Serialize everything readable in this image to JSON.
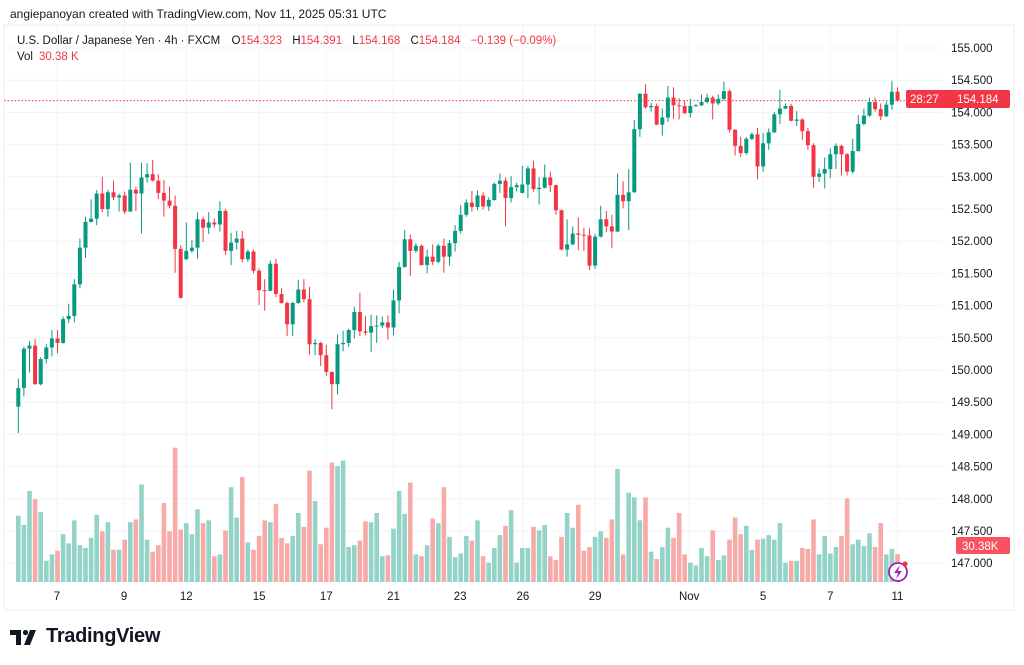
{
  "credit": "angiepanoyan created with TradingView.com, Nov 11, 2025 05:31 UTC",
  "legend": {
    "symbol": "U.S. Dollar / Japanese Yen · 4h · FXCM",
    "o_label": "O",
    "o": "154.323",
    "h_label": "H",
    "h": "154.391",
    "l_label": "L",
    "l": "154.168",
    "c_label": "C",
    "c": "154.184",
    "change": "−0.139 (−0.09%)",
    "vol_label": "Vol",
    "vol": "30.38 K"
  },
  "price_label": {
    "price": "154.184",
    "countdown": "28:27"
  },
  "volume_label": "30.38K",
  "logo_text": "TradingView",
  "colors": {
    "up": "#089981",
    "down": "#f23645",
    "vol_up": "#93d3c8",
    "vol_down": "#f7aaa8",
    "grid": "#f2f3f6"
  },
  "icons": [
    "lightning-icon",
    "tradingview-logo-icon"
  ],
  "chart_data": {
    "type": "candlestick",
    "title": "U.S. Dollar / Japanese Yen · 4h · FXCM",
    "ylim": [
      147.0,
      155.0
    ],
    "y_ticks": [
      "155.000",
      "154.500",
      "154.000",
      "153.500",
      "153.000",
      "152.500",
      "152.000",
      "151.500",
      "151.000",
      "150.500",
      "150.000",
      "149.500",
      "149.000",
      "148.500",
      "148.000",
      "147.500",
      "147.000"
    ],
    "x_ticks": [
      {
        "label": "7",
        "index": 6.9
      },
      {
        "label": "9",
        "index": 18.9
      },
      {
        "label": "12",
        "index": 30
      },
      {
        "label": "15",
        "index": 43
      },
      {
        "label": "17",
        "index": 55
      },
      {
        "label": "21",
        "index": 67
      },
      {
        "label": "23",
        "index": 78.9
      },
      {
        "label": "26",
        "index": 90.1
      },
      {
        "label": "29",
        "index": 103
      },
      {
        "label": "Nov",
        "index": 119.8
      },
      {
        "label": "5",
        "index": 133
      },
      {
        "label": "7",
        "index": 145
      },
      {
        "label": "11",
        "index": 157
      }
    ],
    "last_price": 154.184,
    "volume_unit": "K",
    "ohlc": [
      [
        149.43,
        149.87,
        149.02,
        149.72
      ],
      [
        149.72,
        150.36,
        149.59,
        150.33
      ],
      [
        150.33,
        150.45,
        149.96,
        150.38
      ],
      [
        150.38,
        150.48,
        149.77,
        149.78
      ],
      [
        149.78,
        150.2,
        149.76,
        150.17
      ],
      [
        150.17,
        150.4,
        150.1,
        150.35
      ],
      [
        150.35,
        150.62,
        150.21,
        150.49
      ],
      [
        150.49,
        150.62,
        150.26,
        150.42
      ],
      [
        150.42,
        150.83,
        150.41,
        150.79
      ],
      [
        150.79,
        151.03,
        150.73,
        150.84
      ],
      [
        150.84,
        151.41,
        150.74,
        151.33
      ],
      [
        151.33,
        152.04,
        151.27,
        151.9
      ],
      [
        151.9,
        152.38,
        151.74,
        152.3
      ],
      [
        152.3,
        152.65,
        152.29,
        152.35
      ],
      [
        152.35,
        152.79,
        152.25,
        152.74
      ],
      [
        152.74,
        153.0,
        152.45,
        152.5
      ],
      [
        152.5,
        152.8,
        152.38,
        152.76
      ],
      [
        152.76,
        152.94,
        152.64,
        152.68
      ],
      [
        152.68,
        152.74,
        152.46,
        152.71
      ],
      [
        152.71,
        152.77,
        152.42,
        152.46
      ],
      [
        152.46,
        153.22,
        152.46,
        152.8
      ],
      [
        152.8,
        152.85,
        152.47,
        152.74
      ],
      [
        152.74,
        153.22,
        152.12,
        152.99
      ],
      [
        152.99,
        153.21,
        152.91,
        153.04
      ],
      [
        153.04,
        153.26,
        152.93,
        152.94
      ],
      [
        152.94,
        153.04,
        152.65,
        152.75
      ],
      [
        152.75,
        152.95,
        152.38,
        152.63
      ],
      [
        152.63,
        152.85,
        152.51,
        152.55
      ],
      [
        152.55,
        152.71,
        151.51,
        151.88
      ],
      [
        151.88,
        151.94,
        151.11,
        151.12
      ],
      [
        151.72,
        152.29,
        151.71,
        151.85
      ],
      [
        151.85,
        152.02,
        151.82,
        151.9
      ],
      [
        151.9,
        152.45,
        151.73,
        152.34
      ],
      [
        152.34,
        152.38,
        151.99,
        152.21
      ],
      [
        152.21,
        152.45,
        152.11,
        152.29
      ],
      [
        152.29,
        152.35,
        152.21,
        152.26
      ],
      [
        152.26,
        152.62,
        152.15,
        152.47
      ],
      [
        152.47,
        152.5,
        151.79,
        151.85
      ],
      [
        151.85,
        152.13,
        151.63,
        151.98
      ],
      [
        151.98,
        152.16,
        151.87,
        152.04
      ],
      [
        152.04,
        152.16,
        151.67,
        151.72
      ],
      [
        151.72,
        151.87,
        151.68,
        151.84
      ],
      [
        151.84,
        151.87,
        151.5,
        151.54
      ],
      [
        151.54,
        151.58,
        151.01,
        151.24
      ],
      [
        151.24,
        151.41,
        150.92,
        151.23
      ],
      [
        151.23,
        151.7,
        151.22,
        151.65
      ],
      [
        151.65,
        151.73,
        151.13,
        151.18
      ],
      [
        151.18,
        151.27,
        151.03,
        151.04
      ],
      [
        151.04,
        151.06,
        150.53,
        150.71
      ],
      [
        150.71,
        151.06,
        150.53,
        151.04
      ],
      [
        151.04,
        151.4,
        151.03,
        151.25
      ],
      [
        151.25,
        151.41,
        151.05,
        151.1
      ],
      [
        151.1,
        151.29,
        150.24,
        150.4
      ],
      [
        150.4,
        150.48,
        150.23,
        150.42
      ],
      [
        150.42,
        150.44,
        150.06,
        150.23
      ],
      [
        150.23,
        150.39,
        149.91,
        149.97
      ],
      [
        149.97,
        149.98,
        149.39,
        149.78
      ],
      [
        149.78,
        150.55,
        149.62,
        150.4
      ],
      [
        150.4,
        150.61,
        150.29,
        150.42
      ],
      [
        150.42,
        150.64,
        150.36,
        150.62
      ],
      [
        150.62,
        150.98,
        150.49,
        150.9
      ],
      [
        150.9,
        151.2,
        150.53,
        150.6
      ],
      [
        150.6,
        150.84,
        150.54,
        150.58
      ],
      [
        150.58,
        150.86,
        150.28,
        150.68
      ],
      [
        150.68,
        150.85,
        150.42,
        150.69
      ],
      [
        150.69,
        150.83,
        150.65,
        150.74
      ],
      [
        150.74,
        150.85,
        150.47,
        150.66
      ],
      [
        150.66,
        151.25,
        150.54,
        151.08
      ],
      [
        151.08,
        151.68,
        150.88,
        151.6
      ],
      [
        151.6,
        152.17,
        151.59,
        152.03
      ],
      [
        152.03,
        152.1,
        151.46,
        151.85
      ],
      [
        151.85,
        151.97,
        151.82,
        151.93
      ],
      [
        151.93,
        151.95,
        151.62,
        151.63
      ],
      [
        151.63,
        151.87,
        151.5,
        151.76
      ],
      [
        151.76,
        151.95,
        151.63,
        151.68
      ],
      [
        151.68,
        151.96,
        151.66,
        151.93
      ],
      [
        151.93,
        152.04,
        151.51,
        151.76
      ],
      [
        151.76,
        152.02,
        151.62,
        151.97
      ],
      [
        151.97,
        152.25,
        151.84,
        152.16
      ],
      [
        152.16,
        152.56,
        152.12,
        152.41
      ],
      [
        152.41,
        152.65,
        152.38,
        152.6
      ],
      [
        152.6,
        152.78,
        152.46,
        152.53
      ],
      [
        152.53,
        152.79,
        152.48,
        152.71
      ],
      [
        152.71,
        152.76,
        152.49,
        152.54
      ],
      [
        152.54,
        152.68,
        152.47,
        152.64
      ],
      [
        152.64,
        152.91,
        152.63,
        152.89
      ],
      [
        152.89,
        153.05,
        152.75,
        152.94
      ],
      [
        152.94,
        152.99,
        152.23,
        152.67
      ],
      [
        152.67,
        153.01,
        152.6,
        152.84
      ],
      [
        152.84,
        152.91,
        152.77,
        152.87
      ],
      [
        152.75,
        153.17,
        152.74,
        152.88
      ],
      [
        152.88,
        153.17,
        152.67,
        153.13
      ],
      [
        153.13,
        153.25,
        152.77,
        152.81
      ],
      [
        152.81,
        152.99,
        152.57,
        152.83
      ],
      [
        152.83,
        153.19,
        152.82,
        152.99
      ],
      [
        152.99,
        153.08,
        152.76,
        152.87
      ],
      [
        152.87,
        152.88,
        152.41,
        152.48
      ],
      [
        152.48,
        152.49,
        151.86,
        151.87
      ],
      [
        151.87,
        152.34,
        151.76,
        151.95
      ],
      [
        151.95,
        152.23,
        151.94,
        152.12
      ],
      [
        152.12,
        152.37,
        151.86,
        152.1
      ],
      [
        152.1,
        152.21,
        151.85,
        152.09
      ],
      [
        152.09,
        152.2,
        151.55,
        151.62
      ],
      [
        151.62,
        152.11,
        151.57,
        152.07
      ],
      [
        152.07,
        152.55,
        152.06,
        152.34
      ],
      [
        152.34,
        152.47,
        152.14,
        152.23
      ],
      [
        152.23,
        152.41,
        151.89,
        152.15
      ],
      [
        152.15,
        153.05,
        152.14,
        152.72
      ],
      [
        152.72,
        152.93,
        152.51,
        152.62
      ],
      [
        152.62,
        153.12,
        152.17,
        152.76
      ],
      [
        152.76,
        153.88,
        152.75,
        153.74
      ],
      [
        153.74,
        154.3,
        153.62,
        154.29
      ],
      [
        154.29,
        154.44,
        154.06,
        154.08
      ],
      [
        154.08,
        154.15,
        154.01,
        154.1
      ],
      [
        154.1,
        154.14,
        153.8,
        153.81
      ],
      [
        153.81,
        154.06,
        153.64,
        153.92
      ],
      [
        153.92,
        154.41,
        153.85,
        154.23
      ],
      [
        154.23,
        154.39,
        153.9,
        154.11
      ],
      [
        154.11,
        154.22,
        153.89,
        154.1
      ],
      [
        154.1,
        154.18,
        153.97,
        153.99
      ],
      [
        153.99,
        154.21,
        153.92,
        154.1
      ],
      [
        154.1,
        154.13,
        154.09,
        154.11
      ],
      [
        154.11,
        154.28,
        154.1,
        154.16
      ],
      [
        154.16,
        154.29,
        154.14,
        154.23
      ],
      [
        154.23,
        154.26,
        153.89,
        154.14
      ],
      [
        154.14,
        154.28,
        154.11,
        154.21
      ],
      [
        154.21,
        154.48,
        154.18,
        154.33
      ],
      [
        154.33,
        154.36,
        153.69,
        153.73
      ],
      [
        153.73,
        153.74,
        153.33,
        153.48
      ],
      [
        153.48,
        153.62,
        153.31,
        153.37
      ],
      [
        153.37,
        153.62,
        153.34,
        153.59
      ],
      [
        153.59,
        153.69,
        153.57,
        153.66
      ],
      [
        153.66,
        153.76,
        152.96,
        153.16
      ],
      [
        153.16,
        153.68,
        153.08,
        153.52
      ],
      [
        153.52,
        153.75,
        153.42,
        153.69
      ],
      [
        153.69,
        154.01,
        153.68,
        153.97
      ],
      [
        153.97,
        154.35,
        153.82,
        154.06
      ],
      [
        154.06,
        154.14,
        154.05,
        154.1
      ],
      [
        154.1,
        154.13,
        153.86,
        153.87
      ],
      [
        153.87,
        154.02,
        153.79,
        153.89
      ],
      [
        153.89,
        153.91,
        153.57,
        153.71
      ],
      [
        153.71,
        153.76,
        153.42,
        153.49
      ],
      [
        153.49,
        153.52,
        152.83,
        153.0
      ],
      [
        153.0,
        153.13,
        152.92,
        153.05
      ],
      [
        153.05,
        153.3,
        152.82,
        153.12
      ],
      [
        153.12,
        153.44,
        152.98,
        153.35
      ],
      [
        153.35,
        153.52,
        153.12,
        153.48
      ],
      [
        153.48,
        153.5,
        153.02,
        153.35
      ],
      [
        153.35,
        153.37,
        153.02,
        153.08
      ],
      [
        153.08,
        153.59,
        153.05,
        153.4
      ],
      [
        153.4,
        153.96,
        153.39,
        153.82
      ],
      [
        153.82,
        154.06,
        153.8,
        153.95
      ],
      [
        153.95,
        154.23,
        153.93,
        154.16
      ],
      [
        154.16,
        154.23,
        154.01,
        154.05
      ],
      [
        154.05,
        154.14,
        153.88,
        153.94
      ],
      [
        153.94,
        154.17,
        153.93,
        154.12
      ],
      [
        154.12,
        154.49,
        154.04,
        154.32
      ],
      [
        154.323,
        154.391,
        154.168,
        154.184
      ]
    ],
    "volume": [
      72,
      62,
      99,
      90,
      76,
      23,
      30,
      34,
      52,
      42,
      67,
      40,
      37,
      48,
      73,
      55,
      65,
      35,
      35,
      46,
      65,
      68,
      106,
      46,
      33,
      40,
      86,
      55,
      146,
      57,
      64,
      52,
      79,
      64,
      67,
      28,
      30,
      56,
      103,
      70,
      114,
      43,
      35,
      50,
      67,
      65,
      85,
      48,
      42,
      50,
      75,
      60,
      121,
      88,
      41,
      59,
      130,
      126,
      132,
      38,
      40,
      45,
      66,
      65,
      75,
      28,
      29,
      58,
      99,
      74,
      108,
      30,
      28,
      40,
      69,
      64,
      103,
      49,
      27,
      31,
      50,
      45,
      67,
      28,
      21,
      37,
      51,
      61,
      78,
      21,
      37,
      37,
      60,
      56,
      62,
      28,
      24,
      49,
      75,
      59,
      84,
      34,
      38,
      49,
      55,
      48,
      68,
      123,
      30,
      97,
      92,
      67,
      92,
      33,
      25,
      38,
      59,
      48,
      75,
      30,
      21,
      18,
      37,
      28,
      56,
      24,
      29,
      46,
      70,
      52,
      61,
      35,
      46,
      47,
      51,
      46,
      64,
      21,
      23,
      23,
      37,
      36,
      68,
      30,
      50,
      31,
      38,
      50,
      91,
      41,
      46,
      39,
      53,
      38,
      64,
      30,
      36,
      30.38
    ]
  }
}
